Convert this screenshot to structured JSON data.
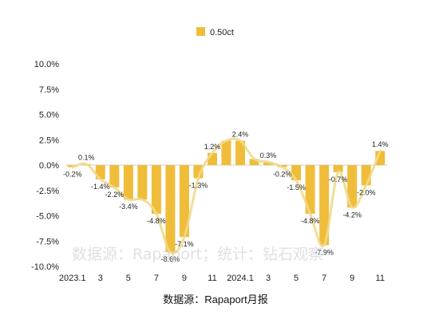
{
  "chart_data": {
    "type": "bar",
    "legend_position": "top",
    "series": [
      {
        "name": "0.50ct",
        "color": "#f0bd3a",
        "trend_color": "#efd98c",
        "values": [
          -0.2,
          0.1,
          -1.4,
          -2.2,
          -3.4,
          -3.4,
          -4.8,
          -8.6,
          -7.1,
          -1.3,
          1.2,
          2.4,
          2.4,
          0.6,
          0.3,
          -0.2,
          -1.5,
          -4.8,
          -7.9,
          -0.7,
          -4.2,
          -2.0,
          1.4
        ]
      }
    ],
    "point_labels": [
      "-0.2%",
      "0.1%",
      "-1.4%",
      "-2.2%",
      "-3.4%",
      "",
      "-4.8%",
      "-8.6%",
      "-7.1%",
      "-1.3%",
      "1.2%",
      "",
      "2.4%",
      "",
      "0.3%",
      "-0.2%",
      "-1.5%",
      "-4.8%",
      "-7.9%",
      "-0.7%",
      "-4.2%",
      "-2.0%",
      "1.4%"
    ],
    "x_tick_labels": [
      {
        "index": 0,
        "label": "2023.1"
      },
      {
        "index": 2,
        "label": "3"
      },
      {
        "index": 4,
        "label": "5"
      },
      {
        "index": 6,
        "label": "7"
      },
      {
        "index": 8,
        "label": "9"
      },
      {
        "index": 10,
        "label": "11"
      },
      {
        "index": 12,
        "label": "2024.1"
      },
      {
        "index": 14,
        "label": "3"
      },
      {
        "index": 16,
        "label": "5"
      },
      {
        "index": 18,
        "label": "7"
      },
      {
        "index": 20,
        "label": "9"
      },
      {
        "index": 22,
        "label": "11"
      }
    ],
    "y_ticks": [
      {
        "value": 10,
        "label": "10.0%"
      },
      {
        "value": 7.5,
        "label": "7.5%"
      },
      {
        "value": 5,
        "label": "5.0%"
      },
      {
        "value": 2.5,
        "label": "2.5%"
      },
      {
        "value": 0,
        "label": "0.0%"
      },
      {
        "value": -2.5,
        "label": "-2.5%"
      },
      {
        "value": -5,
        "label": "-5.0%"
      },
      {
        "value": -7.5,
        "label": "-7.5%"
      },
      {
        "value": -10,
        "label": "-10.0%"
      }
    ],
    "ylim": [
      -10,
      10
    ],
    "grid": false,
    "source": "数据源：Rapaport月报",
    "watermark": "数据源：Rapaport；统计：钻石观察"
  }
}
